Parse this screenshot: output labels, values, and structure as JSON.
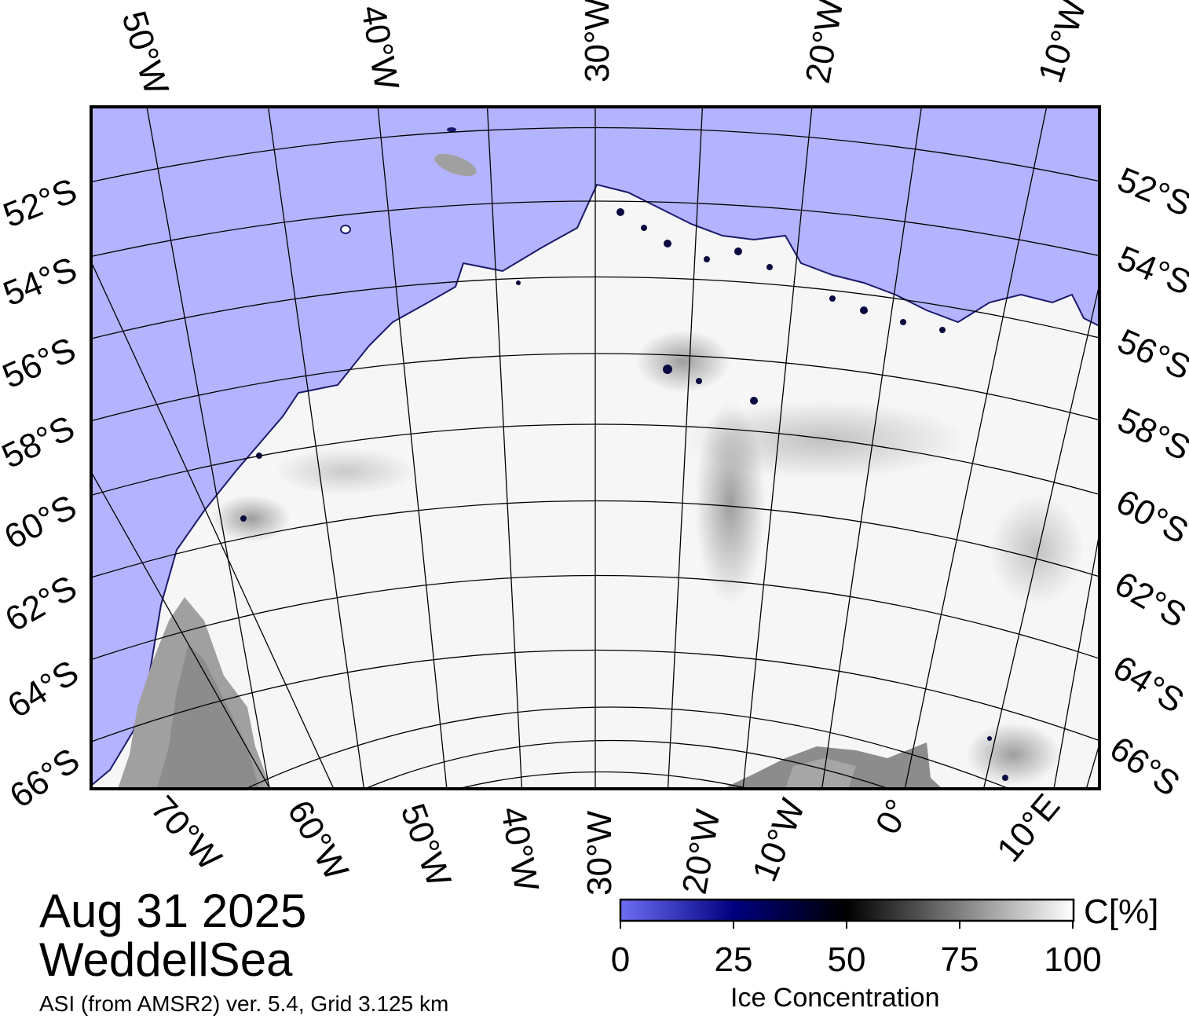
{
  "map": {
    "date": "Aug 31 2025",
    "region": "WeddellSea",
    "subtitle": "ASI (from AMSR2) ver. 5.4,  Grid 3.125 km",
    "colors": {
      "open_water": "#b3b3ff",
      "ice_full": "#ffffff",
      "land": "#a0a0a0",
      "land_dark": "#8c8c8c",
      "graticule": "#000000"
    },
    "top_lon_labels": [
      "50°W",
      "40°W",
      "30°W",
      "20°W",
      "10°W"
    ],
    "bottom_lon_labels": [
      "70°W",
      "60°W",
      "50°W",
      "40°W",
      "30°W",
      "20°W",
      "10°W",
      "0°",
      "10°E"
    ],
    "left_lat_labels": [
      "52°S",
      "54°S",
      "56°S",
      "58°S",
      "60°S",
      "62°S",
      "64°S",
      "66°S"
    ],
    "right_lat_labels": [
      "52°S",
      "54°S",
      "56°S",
      "58°S",
      "60°S",
      "62°S",
      "64°S",
      "66°S"
    ]
  },
  "colorbar": {
    "title": "Ice Concentration",
    "unit": "C[%]",
    "ticks": [
      "0",
      "25",
      "50",
      "75",
      "100"
    ],
    "stops": [
      "#6e6ef5",
      "#000080",
      "#000000",
      "#808080",
      "#ffffff"
    ]
  }
}
